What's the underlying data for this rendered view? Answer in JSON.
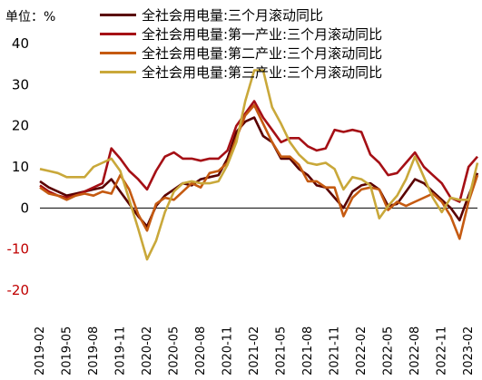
{
  "chart_data": {
    "type": "line",
    "unit_label": "单位：%",
    "ylim": [
      -20,
      40
    ],
    "yticks": [
      -20,
      -10,
      0,
      10,
      20,
      30,
      40
    ],
    "grid": false,
    "legend_placement": "top",
    "x": [
      "2019-02",
      "2019-03",
      "2019-04",
      "2019-05",
      "2019-06",
      "2019-07",
      "2019-08",
      "2019-09",
      "2019-10",
      "2019-11",
      "2019-12",
      "2020-01",
      "2020-02",
      "2020-03",
      "2020-04",
      "2020-05",
      "2020-06",
      "2020-07",
      "2020-08",
      "2020-09",
      "2020-10",
      "2020-11",
      "2020-12",
      "2021-01",
      "2021-02",
      "2021-03",
      "2021-04",
      "2021-05",
      "2021-06",
      "2021-07",
      "2021-08",
      "2021-09",
      "2021-10",
      "2021-11",
      "2021-12",
      "2022-01",
      "2022-02",
      "2022-03",
      "2022-04",
      "2022-05",
      "2022-06",
      "2022-07",
      "2022-08",
      "2022-09",
      "2022-10",
      "2022-11",
      "2022-12",
      "2023-01",
      "2023-02",
      "2023-03"
    ],
    "xtick_labels": [
      "2019-02",
      "2019-05",
      "2019-08",
      "2019-11",
      "2020-02",
      "2020-05",
      "2020-08",
      "2020-11",
      "2021-02",
      "2021-05",
      "2021-08",
      "2021-11",
      "2022-02",
      "2022-05",
      "2022-08",
      "2022-11",
      "2023-02"
    ],
    "series": [
      {
        "name": "全社会用电量:三个月滚动同比",
        "color": "#5a0000",
        "values": [
          6.5,
          5.0,
          4.0,
          3.0,
          3.5,
          4.0,
          4.5,
          5.0,
          7.0,
          4.0,
          1.0,
          -2.0,
          -4.5,
          0.5,
          3.0,
          4.5,
          6.0,
          5.5,
          7.0,
          7.5,
          8.0,
          12.0,
          18.5,
          21.0,
          22.0,
          17.5,
          16.0,
          12.0,
          12.0,
          9.5,
          8.0,
          5.5,
          5.0,
          2.5,
          0.0,
          4.0,
          5.5,
          6.0,
          4.5,
          0.5,
          1.0,
          4.0,
          7.0,
          6.0,
          4.0,
          2.0,
          0.0,
          -3.0,
          3.0,
          8.5
        ]
      },
      {
        "name": "全社会用电量:第一产业:三个月滚动同比",
        "color": "#a50f15",
        "values": [
          5.5,
          4.0,
          3.0,
          2.5,
          3.0,
          4.0,
          5.0,
          6.0,
          14.5,
          12.0,
          9.0,
          7.0,
          4.5,
          9.0,
          12.5,
          13.5,
          12.0,
          12.0,
          11.5,
          12.0,
          12.0,
          14.0,
          20.0,
          23.0,
          26.0,
          22.0,
          19.0,
          16.0,
          17.0,
          17.0,
          15.0,
          14.0,
          14.5,
          19.0,
          18.5,
          19.0,
          18.5,
          13.0,
          11.0,
          8.0,
          8.5,
          11.0,
          13.5,
          10.0,
          8.0,
          6.0,
          2.5,
          1.5,
          10.0,
          12.5
        ]
      },
      {
        "name": "全社会用电量:第二产业:三个月滚动同比",
        "color": "#c55a11",
        "values": [
          5.0,
          3.5,
          3.0,
          2.0,
          3.0,
          3.5,
          3.0,
          4.0,
          3.5,
          8.0,
          4.5,
          -1.5,
          -5.5,
          1.0,
          2.5,
          2.0,
          4.0,
          6.0,
          5.0,
          8.5,
          9.0,
          11.0,
          17.0,
          22.5,
          25.0,
          20.5,
          16.0,
          12.5,
          12.5,
          10.5,
          6.5,
          6.5,
          5.0,
          5.0,
          -2.0,
          2.5,
          4.5,
          5.0,
          4.5,
          -0.5,
          1.5,
          0.5,
          1.5,
          2.5,
          3.5,
          1.5,
          -2.0,
          -7.5,
          1.5,
          8.0
        ]
      },
      {
        "name": "全社会用电量:第三产业:三个月滚动同比",
        "color": "#c9a83a",
        "values": [
          9.5,
          9.0,
          8.5,
          7.5,
          7.5,
          7.5,
          10.0,
          11.0,
          12.0,
          9.0,
          2.0,
          -5.0,
          -12.5,
          -8.0,
          -1.0,
          4.0,
          6.0,
          6.5,
          6.0,
          6.0,
          6.5,
          10.5,
          16.0,
          26.0,
          33.5,
          33.5,
          24.5,
          20.5,
          16.0,
          13.0,
          11.0,
          10.5,
          11.0,
          9.5,
          4.5,
          7.5,
          7.0,
          5.5,
          -2.5,
          0.5,
          3.0,
          7.0,
          12.5,
          7.5,
          2.5,
          -1.0,
          2.5,
          2.0,
          2.0,
          11.0
        ]
      }
    ]
  }
}
